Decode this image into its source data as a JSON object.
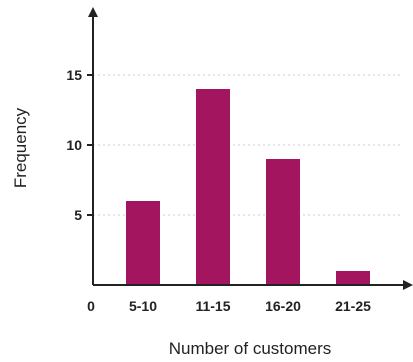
{
  "chart_data": {
    "type": "bar",
    "categories": [
      "5-10",
      "11-15",
      "16-20",
      "21-25"
    ],
    "values": [
      6,
      14,
      9,
      1
    ],
    "xlabel": "Number of customers",
    "ylabel": "Frequency",
    "origin_label": "0",
    "yticks": [
      0,
      5,
      10,
      15
    ],
    "ylim": [
      0,
      19.5
    ],
    "grid": "horizontal dotted",
    "legend": "none",
    "colors": {
      "bar": "#A3165F",
      "axis": "#222222",
      "grid": "#cccccc"
    }
  }
}
